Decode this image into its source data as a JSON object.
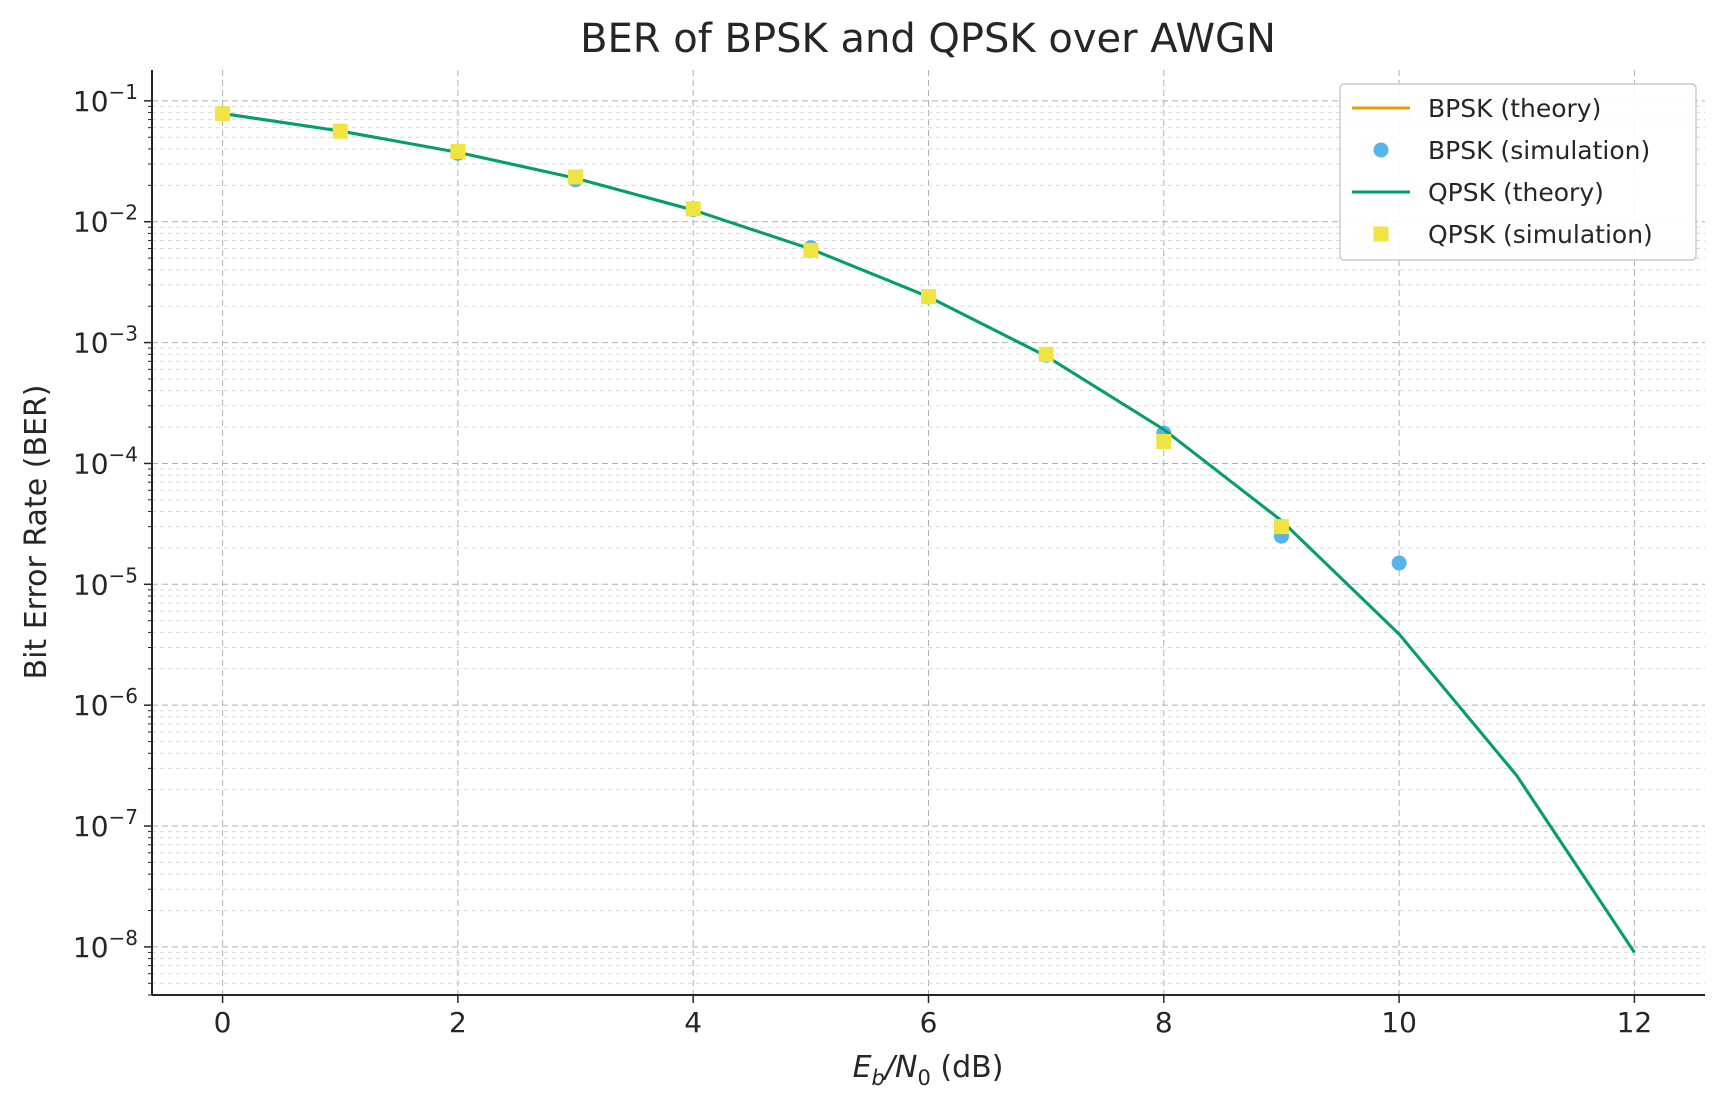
{
  "chart_data": {
    "type": "line",
    "title": "BER of BPSK and QPSK over AWGN",
    "xlabel": {
      "e": "E",
      "b": "b",
      "slash": "/N",
      "zero": "0",
      "unit": " (dB)"
    },
    "ylabel": "Bit Error Rate (BER)",
    "x_scale": "linear",
    "y_scale": "log",
    "xlim": [
      -0.6,
      12.6
    ],
    "ylim": [
      4e-09,
      0.18
    ],
    "x_ticks": [
      0,
      2,
      4,
      6,
      8,
      10,
      12
    ],
    "y_tick_exponents": [
      -1,
      -2,
      -3,
      -4,
      -5,
      -6,
      -7,
      -8
    ],
    "grid": true,
    "legend_position": "top-right",
    "series": [
      {
        "name": "BPSK (theory)",
        "kind": "line",
        "color": "#e69f00",
        "x": [
          0,
          1,
          2,
          3,
          4,
          5,
          6,
          7,
          8,
          9,
          10,
          11,
          12
        ],
        "y": [
          0.0786,
          0.0563,
          0.0375,
          0.0229,
          0.0125,
          0.00595,
          0.00239,
          0.000773,
          0.000191,
          3.36e-05,
          3.87e-06,
          2.61e-07,
          9e-09
        ]
      },
      {
        "name": "BPSK (simulation)",
        "kind": "scatter",
        "marker": "circle",
        "color": "#56b4e9",
        "x": [
          0,
          1,
          2,
          3,
          4,
          5,
          6,
          7,
          8,
          9,
          10
        ],
        "y": [
          0.0787,
          0.0562,
          0.0368,
          0.0222,
          0.0126,
          0.0061,
          0.00238,
          0.000785,
          0.000178,
          2.5e-05,
          1.5e-05
        ]
      },
      {
        "name": "QPSK (theory)",
        "kind": "line",
        "color": "#009e73",
        "x": [
          0,
          1,
          2,
          3,
          4,
          5,
          6,
          7,
          8,
          9,
          10,
          11,
          12
        ],
        "y": [
          0.0786,
          0.0563,
          0.0375,
          0.0229,
          0.0125,
          0.00595,
          0.00239,
          0.000773,
          0.000191,
          3.36e-05,
          3.87e-06,
          2.61e-07,
          9e-09
        ]
      },
      {
        "name": "QPSK (simulation)",
        "kind": "scatter",
        "marker": "square",
        "color": "#f0e442",
        "x": [
          0,
          1,
          2,
          3,
          4,
          5,
          6,
          7,
          8,
          9
        ],
        "y": [
          0.0784,
          0.0561,
          0.0381,
          0.0235,
          0.0128,
          0.0058,
          0.0024,
          0.0008,
          0.000152,
          3e-05
        ]
      }
    ]
  }
}
